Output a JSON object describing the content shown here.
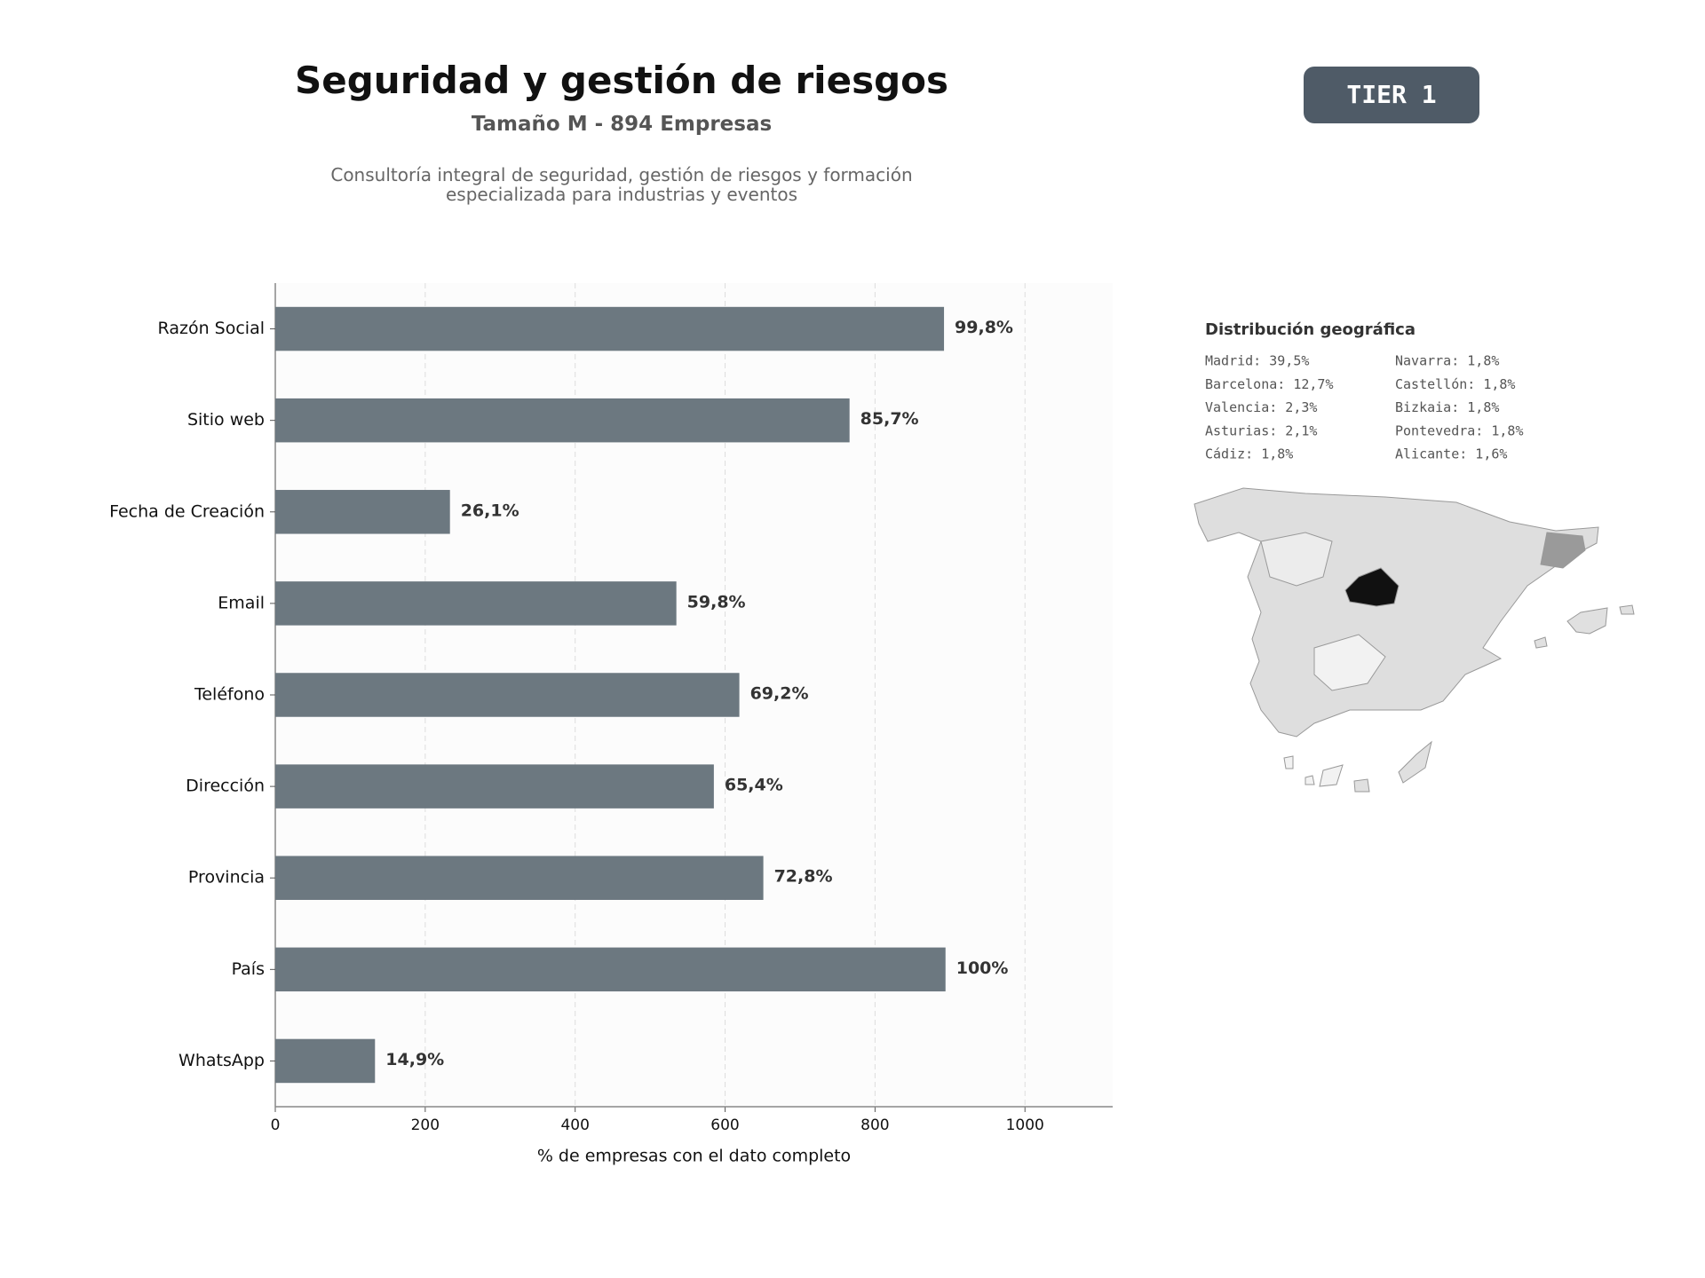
{
  "chart_data": {
    "type": "bar",
    "orientation": "horizontal",
    "title": "Seguridad y gestión de riesgos",
    "subtitle": "Tamaño M - 894 Empresas",
    "description": "Consultoría integral de seguridad, gestión de riesgos y formación especializada para industrias y eventos",
    "categories": [
      "Razón Social",
      "Sitio web",
      "Fecha de Creación",
      "Email",
      "Teléfono",
      "Dirección",
      "Provincia",
      "País",
      "WhatsApp"
    ],
    "values": [
      892,
      766,
      233,
      535,
      619,
      585,
      651,
      894,
      133
    ],
    "value_labels": [
      "99,8%",
      "85,7%",
      "26,1%",
      "59,8%",
      "69,2%",
      "65,4%",
      "72,8%",
      "100%",
      "14,9%"
    ],
    "color": "#6c7880",
    "xlabel": "% de empresas con el dato completo",
    "xlim": [
      0,
      1117
    ],
    "xticks": [
      0,
      200,
      400,
      600,
      800,
      1000
    ],
    "grid": true
  },
  "badge": "TIER 1",
  "map_panel": {
    "title": "Distribución geográfica",
    "items": [
      "Madrid: 39,5%",
      "Barcelona: 12,7%",
      "Valencia: 2,3%",
      "Asturias: 2,1%",
      "Cádiz: 1,8%",
      "Navarra: 1,8%",
      "Castellón: 1,8%",
      "Bizkaia: 1,8%",
      "Pontevedra: 1,8%",
      "Alicante: 1,6%"
    ]
  }
}
